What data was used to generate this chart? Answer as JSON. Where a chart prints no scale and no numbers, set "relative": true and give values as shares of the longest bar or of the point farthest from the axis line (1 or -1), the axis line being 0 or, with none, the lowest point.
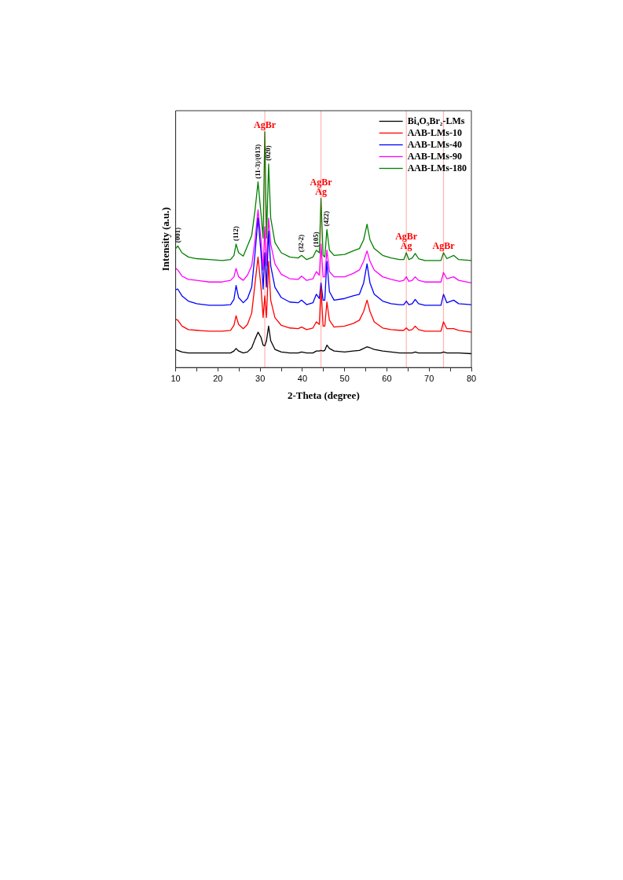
{
  "chart_data": {
    "type": "line",
    "relative": true,
    "xlabel": "2-Theta (degree)",
    "ylabel": "Intensity (a.u.)",
    "xlim": [
      10,
      80
    ],
    "xticks": [
      10,
      {
        "value": 15,
        "label": null
      },
      20,
      {
        "value": 25,
        "label": null
      },
      30,
      {
        "value": 35,
        "label": null
      },
      40,
      {
        "value": 45,
        "label": null
      },
      50,
      {
        "value": 55,
        "label": null
      },
      60,
      {
        "value": 65,
        "label": null
      },
      70,
      {
        "value": 75,
        "label": null
      },
      80
    ],
    "x": [
      10,
      10.5,
      11.5,
      13,
      15,
      18,
      21,
      23,
      23.8,
      24.3,
      24.9,
      26,
      27,
      28,
      28.8,
      29.5,
      30.2,
      30.7,
      31.1,
      31.5,
      32.0,
      32.5,
      33.5,
      35,
      37,
      39,
      39.8,
      41,
      42.5,
      43.3,
      44.0,
      44.4,
      44.9,
      45.3,
      45.8,
      46.4,
      47.5,
      50,
      52,
      53.5,
      54.5,
      55.3,
      56,
      57,
      59,
      61,
      63,
      64.0,
      64.6,
      65.2,
      66,
      66.7,
      67.5,
      69,
      71,
      72.8,
      73.4,
      74.2,
      75.8,
      77,
      80
    ],
    "series": [
      {
        "name": "Bi₄O₅Br₂-LMs",
        "color": "#000000",
        "values": [
          0.077,
          0.073,
          0.066,
          0.062,
          0.062,
          0.062,
          0.062,
          0.062,
          0.07,
          0.081,
          0.07,
          0.062,
          0.066,
          0.084,
          0.121,
          0.15,
          0.128,
          0.095,
          0.092,
          0.114,
          0.176,
          0.114,
          0.077,
          0.066,
          0.062,
          0.062,
          0.066,
          0.062,
          0.062,
          0.07,
          0.07,
          0.073,
          0.07,
          0.073,
          0.095,
          0.081,
          0.07,
          0.066,
          0.07,
          0.073,
          0.081,
          0.088,
          0.084,
          0.077,
          0.07,
          0.066,
          0.062,
          0.062,
          0.062,
          0.062,
          0.062,
          0.066,
          0.062,
          0.062,
          0.062,
          0.062,
          0.066,
          0.062,
          0.062,
          0.062,
          0.059
        ]
      },
      {
        "name": "AAB-LMs-10",
        "color": "#ff0000",
        "values": [
          0.205,
          0.201,
          0.176,
          0.161,
          0.158,
          0.154,
          0.154,
          0.158,
          0.179,
          0.22,
          0.183,
          0.165,
          0.183,
          0.231,
          0.359,
          0.469,
          0.341,
          0.212,
          0.304,
          0.212,
          0.451,
          0.286,
          0.212,
          0.179,
          0.168,
          0.165,
          0.172,
          0.161,
          0.168,
          0.194,
          0.183,
          0.341,
          0.176,
          0.176,
          0.278,
          0.201,
          0.172,
          0.176,
          0.187,
          0.201,
          0.238,
          0.286,
          0.238,
          0.194,
          0.168,
          0.161,
          0.158,
          0.158,
          0.168,
          0.158,
          0.161,
          0.176,
          0.161,
          0.154,
          0.154,
          0.154,
          0.194,
          0.165,
          0.165,
          0.158,
          0.15
        ]
      },
      {
        "name": "AAB-LMs-40",
        "color": "#0000ff",
        "values": [
          0.33,
          0.333,
          0.304,
          0.282,
          0.271,
          0.264,
          0.264,
          0.267,
          0.289,
          0.348,
          0.297,
          0.275,
          0.293,
          0.341,
          0.487,
          0.634,
          0.487,
          0.333,
          0.487,
          0.341,
          0.579,
          0.432,
          0.341,
          0.297,
          0.278,
          0.275,
          0.286,
          0.267,
          0.275,
          0.311,
          0.293,
          0.359,
          0.286,
          0.286,
          0.451,
          0.322,
          0.286,
          0.293,
          0.304,
          0.311,
          0.359,
          0.44,
          0.359,
          0.311,
          0.282,
          0.271,
          0.267,
          0.267,
          0.282,
          0.267,
          0.271,
          0.289,
          0.271,
          0.264,
          0.264,
          0.264,
          0.311,
          0.275,
          0.286,
          0.271,
          0.267
        ]
      },
      {
        "name": "AAB-LMs-90",
        "color": "#ff00ff",
        "values": [
          0.421,
          0.414,
          0.388,
          0.374,
          0.37,
          0.363,
          0.363,
          0.37,
          0.385,
          0.421,
          0.385,
          0.37,
          0.392,
          0.432,
          0.542,
          0.67,
          0.542,
          0.414,
          0.597,
          0.432,
          0.634,
          0.524,
          0.44,
          0.396,
          0.377,
          0.374,
          0.388,
          0.37,
          0.377,
          0.407,
          0.392,
          0.524,
          0.385,
          0.385,
          0.498,
          0.407,
          0.385,
          0.385,
          0.399,
          0.414,
          0.451,
          0.495,
          0.451,
          0.414,
          0.385,
          0.374,
          0.366,
          0.37,
          0.385,
          0.366,
          0.37,
          0.385,
          0.37,
          0.363,
          0.363,
          0.363,
          0.403,
          0.377,
          0.385,
          0.37,
          0.359
        ]
      },
      {
        "name": "AAB-LMs-180",
        "color": "#008000",
        "values": [
          0.505,
          0.516,
          0.487,
          0.469,
          0.462,
          0.458,
          0.454,
          0.458,
          0.476,
          0.524,
          0.487,
          0.473,
          0.516,
          0.56,
          0.67,
          0.788,
          0.652,
          0.549,
          1,
          0.549,
          0.864,
          0.634,
          0.531,
          0.487,
          0.469,
          0.465,
          0.476,
          0.458,
          0.469,
          0.498,
          0.487,
          0.718,
          0.476,
          0.469,
          0.586,
          0.498,
          0.476,
          0.48,
          0.495,
          0.505,
          0.542,
          0.608,
          0.542,
          0.505,
          0.476,
          0.465,
          0.458,
          0.458,
          0.487,
          0.458,
          0.465,
          0.484,
          0.462,
          0.454,
          0.454,
          0.454,
          0.487,
          0.462,
          0.476,
          0.458,
          0.454
        ]
      }
    ],
    "ref_lines": [
      {
        "axis": "x",
        "value": 31.1,
        "label": "AgBr",
        "color": "#ff0000"
      },
      {
        "axis": "x",
        "value": 44.4,
        "label": "AgBr\nAg",
        "color": "#ff0000"
      },
      {
        "axis": "x",
        "value": 64.6,
        "label": "AgBr\nAg",
        "color": "#ff0000"
      },
      {
        "axis": "x",
        "value": 73.4,
        "label": "AgBr",
        "color": "#ff0000"
      }
    ],
    "annotations": [
      {
        "text": "(001)",
        "x": 10.5,
        "y": 0.516
      },
      {
        "text": "(112)",
        "x": 24.3,
        "y": 0.524
      },
      {
        "text": "(11-3)/(013)",
        "x": 29.5,
        "y": 0.788
      },
      {
        "text": "(020)",
        "x": 32.0,
        "y": 0.864
      },
      {
        "text": "(32-2)",
        "x": 39.8,
        "y": 0.476
      },
      {
        "text": "(105)",
        "x": 43.3,
        "y": 0.498
      },
      {
        "text": "(422)",
        "x": 45.8,
        "y": 0.586
      }
    ],
    "legend": "top right",
    "grid": false,
    "marker": "none",
    "line_style": "solid"
  }
}
